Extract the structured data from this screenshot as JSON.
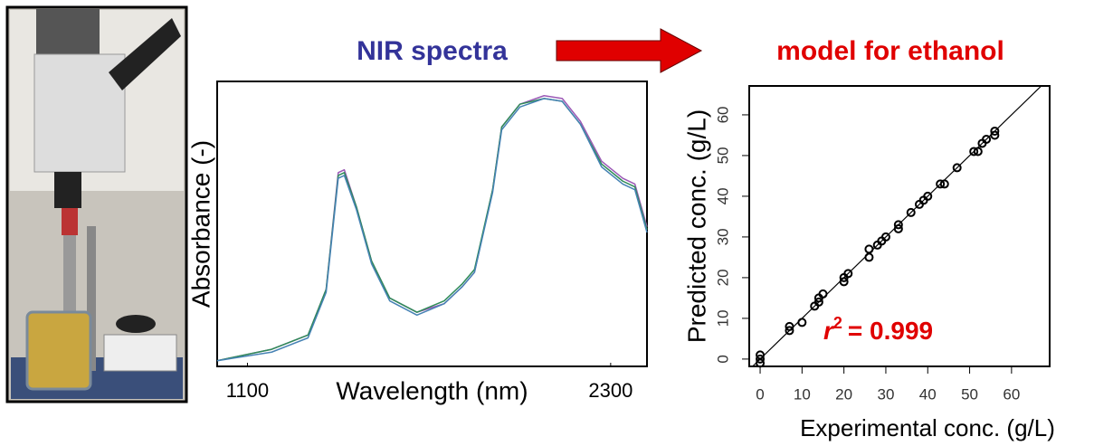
{
  "chart_data": [
    {
      "type": "line",
      "title": "NIR spectra",
      "x_label": "Wavelength (nm)",
      "y_label": "Absorbance (-)",
      "x": [
        1000,
        1180,
        1300,
        1360,
        1400,
        1420,
        1460,
        1510,
        1570,
        1660,
        1750,
        1810,
        1850,
        1910,
        1940,
        2000,
        2080,
        2140,
        2200,
        2270,
        2340,
        2380,
        2420
      ],
      "series": [
        {
          "color": "#9b59b6",
          "values": [
            0.02,
            0.06,
            0.11,
            0.27,
            0.68,
            0.69,
            0.56,
            0.37,
            0.24,
            0.19,
            0.22,
            0.28,
            0.33,
            0.62,
            0.84,
            0.92,
            0.95,
            0.94,
            0.86,
            0.72,
            0.66,
            0.64,
            0.49
          ]
        },
        {
          "color": "#2e8b57",
          "values": [
            0.02,
            0.06,
            0.11,
            0.27,
            0.67,
            0.68,
            0.56,
            0.37,
            0.24,
            0.19,
            0.23,
            0.29,
            0.34,
            0.62,
            0.84,
            0.92,
            0.94,
            0.93,
            0.85,
            0.71,
            0.65,
            0.63,
            0.48
          ]
        },
        {
          "color": "#4682b4",
          "values": [
            0.02,
            0.05,
            0.1,
            0.26,
            0.66,
            0.67,
            0.55,
            0.36,
            0.23,
            0.18,
            0.22,
            0.28,
            0.33,
            0.61,
            0.83,
            0.91,
            0.94,
            0.93,
            0.85,
            0.7,
            0.64,
            0.62,
            0.47
          ]
        }
      ],
      "xlim": [
        1000,
        2420
      ],
      "ylim": [
        0,
        1
      ],
      "xticks": [
        1100,
        2300
      ]
    },
    {
      "type": "scatter",
      "title": "model for ethanol",
      "x_label": "Experimental conc. (g/L)",
      "y_label": "Predicted conc. (g/L)",
      "x": [
        0,
        0,
        0,
        7,
        7,
        10,
        13,
        14,
        14,
        15,
        20,
        20,
        21,
        26,
        26,
        28,
        29,
        30,
        33,
        33,
        36,
        38,
        39,
        40,
        43,
        44,
        47,
        51,
        52,
        53,
        54,
        56,
        56
      ],
      "values": [
        0,
        1,
        -1,
        7,
        8,
        9,
        13,
        14,
        15,
        16,
        19,
        20,
        21,
        25,
        27,
        28,
        29,
        30,
        32,
        33,
        36,
        38,
        39,
        40,
        43,
        43,
        47,
        51,
        51,
        53,
        54,
        55,
        56
      ],
      "color": "#000000",
      "xlim": [
        -2.6,
        69.1
      ],
      "ylim": [
        -1.8,
        67.1
      ],
      "xticks": [
        0,
        10,
        20,
        30,
        40,
        50,
        60
      ],
      "yticks": [
        0,
        10,
        20,
        30,
        40,
        50,
        60
      ],
      "annotation": {
        "symbol": "r",
        "exponent": "2",
        "text": "= 0.999"
      }
    }
  ]
}
